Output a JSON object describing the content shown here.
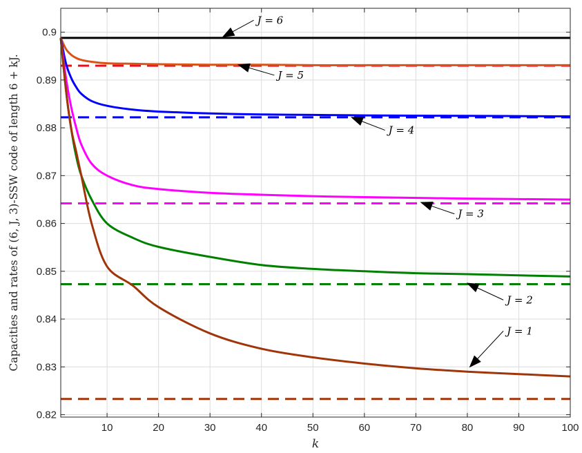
{
  "chart_data": {
    "type": "line",
    "xlabel": "k",
    "ylabel": "Capacities and rates of (6, J, 3)-SSW code of length 6 + kJ.",
    "xlim": [
      1,
      100
    ],
    "ylim": [
      0.8195,
      0.905
    ],
    "xticks": [
      10,
      20,
      30,
      40,
      50,
      60,
      70,
      80,
      90,
      100
    ],
    "yticks": [
      0.82,
      0.83,
      0.84,
      0.85,
      0.86,
      0.87,
      0.88,
      0.89,
      0.9
    ],
    "ytick_labels": [
      "0.82",
      "0.83",
      "0.84",
      "0.85",
      "0.86",
      "0.87",
      "0.88",
      "0.89",
      "0.9"
    ],
    "grid": true,
    "rate_series": [
      {
        "J": 6,
        "color": "#000000",
        "x": [
          1,
          100
        ],
        "values": [
          0.8988,
          0.8988
        ]
      },
      {
        "J": 5,
        "color": "#d95319",
        "x": [
          1,
          2,
          3,
          4,
          5,
          7,
          10,
          15,
          20,
          30,
          40,
          50,
          60,
          80,
          100
        ],
        "values": [
          0.8988,
          0.8965,
          0.8953,
          0.8946,
          0.8942,
          0.8938,
          0.8935,
          0.8934,
          0.8933,
          0.8932,
          0.8932,
          0.8931,
          0.8931,
          0.8931,
          0.8931
        ]
      },
      {
        "J": 4,
        "color": "#0000ff",
        "x": [
          1,
          2,
          3,
          4,
          5,
          7,
          10,
          15,
          20,
          30,
          40,
          50,
          60,
          80,
          100
        ],
        "values": [
          0.8988,
          0.8935,
          0.8905,
          0.8885,
          0.8871,
          0.8856,
          0.8846,
          0.8838,
          0.8834,
          0.883,
          0.8828,
          0.8827,
          0.8826,
          0.8825,
          0.8824
        ]
      },
      {
        "J": 3,
        "color": "#ff00ff",
        "x": [
          1,
          2,
          3,
          4,
          5,
          7,
          10,
          15,
          20,
          30,
          40,
          50,
          60,
          80,
          100
        ],
        "values": [
          0.8988,
          0.8905,
          0.8845,
          0.88,
          0.8765,
          0.8725,
          0.87,
          0.868,
          0.8672,
          0.8664,
          0.866,
          0.8657,
          0.8655,
          0.8652,
          0.865
        ]
      },
      {
        "J": 2,
        "color": "#008000",
        "x": [
          1,
          2,
          3,
          4,
          5,
          7,
          10,
          15,
          20,
          30,
          40,
          50,
          60,
          70,
          80,
          100
        ],
        "values": [
          0.8988,
          0.888,
          0.88,
          0.874,
          0.87,
          0.865,
          0.86,
          0.857,
          0.8551,
          0.853,
          0.8513,
          0.8505,
          0.85,
          0.8496,
          0.8494,
          0.8489
        ]
      },
      {
        "J": 1,
        "color": "#a0350a",
        "x": [
          1,
          2,
          3,
          4,
          5,
          7,
          10,
          15,
          20,
          30,
          40,
          50,
          60,
          70,
          80,
          90,
          100
        ],
        "values": [
          0.8988,
          0.888,
          0.88,
          0.875,
          0.87,
          0.86,
          0.851,
          0.847,
          0.8425,
          0.837,
          0.8338,
          0.832,
          0.8307,
          0.8297,
          0.829,
          0.8285,
          0.828
        ]
      }
    ],
    "capacity_series": [
      {
        "J": 5,
        "color": "#e8101a",
        "value": 0.893
      },
      {
        "J": 4,
        "color": "#0000ff",
        "value": 0.8822
      },
      {
        "J": 3,
        "color": "#ff00ff",
        "value": 0.8642
      },
      {
        "J": 2,
        "color": "#008000",
        "value": 0.8473
      },
      {
        "J": 1,
        "color": "#a0350a",
        "value": 0.8233
      }
    ],
    "annotations": [
      {
        "label": "J = 6",
        "from": [
          38.5,
          0.9025
        ],
        "to": [
          32.5,
          0.899
        ]
      },
      {
        "label": "J = 5",
        "from": [
          42.5,
          0.891
        ],
        "to": [
          35.5,
          0.8932
        ]
      },
      {
        "label": "J = 4",
        "from": [
          64,
          0.8795
        ],
        "to": [
          57.5,
          0.8822
        ]
      },
      {
        "label": "J = 3",
        "from": [
          77.5,
          0.862
        ],
        "to": [
          71,
          0.8644
        ]
      },
      {
        "label": "J = 2",
        "from": [
          87,
          0.844
        ],
        "to": [
          80,
          0.8475
        ]
      },
      {
        "label": "J = 1",
        "from": [
          87,
          0.8375
        ],
        "to": [
          80.5,
          0.83
        ]
      }
    ]
  }
}
